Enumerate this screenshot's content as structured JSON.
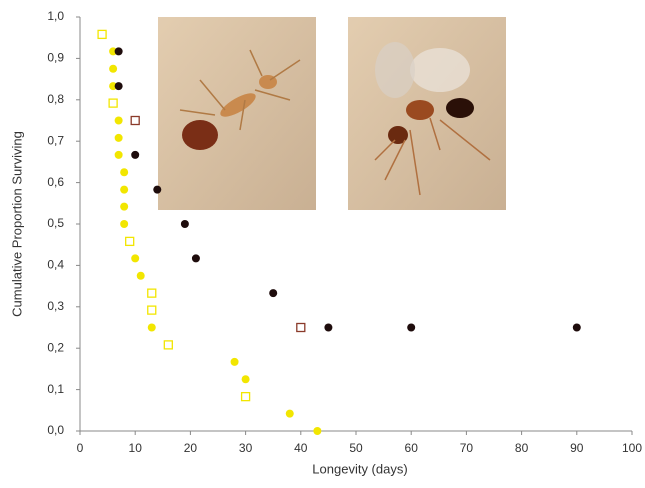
{
  "chart_data": {
    "type": "scatter",
    "xlabel": "Longevity (days)",
    "ylabel": "Cumulative Proportion Surviving",
    "xlim": [
      0,
      100
    ],
    "xticks": [
      0,
      10,
      20,
      30,
      40,
      50,
      60,
      70,
      80,
      90,
      100
    ],
    "ylim": [
      0,
      1
    ],
    "yticks": [
      {
        "value": 0,
        "label": "0,0"
      },
      {
        "value": 0.1,
        "label": "0,1"
      },
      {
        "value": 0.2,
        "label": "0,2"
      },
      {
        "value": 0.3,
        "label": "0,3"
      },
      {
        "value": 0.4,
        "label": "0,4"
      },
      {
        "value": 0.5,
        "label": "0,5"
      },
      {
        "value": 0.6,
        "label": "0,6"
      },
      {
        "value": 0.7,
        "label": "0,7"
      },
      {
        "value": 0.8,
        "label": "0,8"
      },
      {
        "value": 0.9,
        "label": "0,9"
      },
      {
        "value": 1,
        "label": "1,0"
      }
    ],
    "series": [
      {
        "marker": "circle",
        "color": "#f2e600",
        "x": [
          6,
          6,
          6,
          7,
          7,
          7,
          8,
          8,
          8,
          8,
          10,
          11,
          13,
          28,
          30,
          38,
          43
        ],
        "values": [
          0.917,
          0.875,
          0.833,
          0.75,
          0.708,
          0.667,
          0.625,
          0.583,
          0.542,
          0.5,
          0.417,
          0.375,
          0.25,
          0.167,
          0.125,
          0.042,
          0
        ]
      },
      {
        "marker": "square",
        "color": "#f2e600",
        "x": [
          4,
          6,
          9,
          13,
          13,
          16,
          30
        ],
        "values": [
          0.958,
          0.792,
          0.458,
          0.333,
          0.292,
          0.208,
          0.083
        ]
      },
      {
        "marker": "circle",
        "color": "#1e0c0c",
        "x": [
          7,
          7,
          10,
          14,
          19,
          21,
          35,
          45,
          60,
          90
        ],
        "values": [
          0.917,
          0.833,
          0.667,
          0.583,
          0.5,
          0.417,
          0.333,
          0.25,
          0.25,
          0.25
        ]
      },
      {
        "marker": "square",
        "color": "#8a3a2a",
        "x": [
          10,
          40
        ],
        "values": [
          0.75,
          0.25
        ]
      }
    ]
  }
}
